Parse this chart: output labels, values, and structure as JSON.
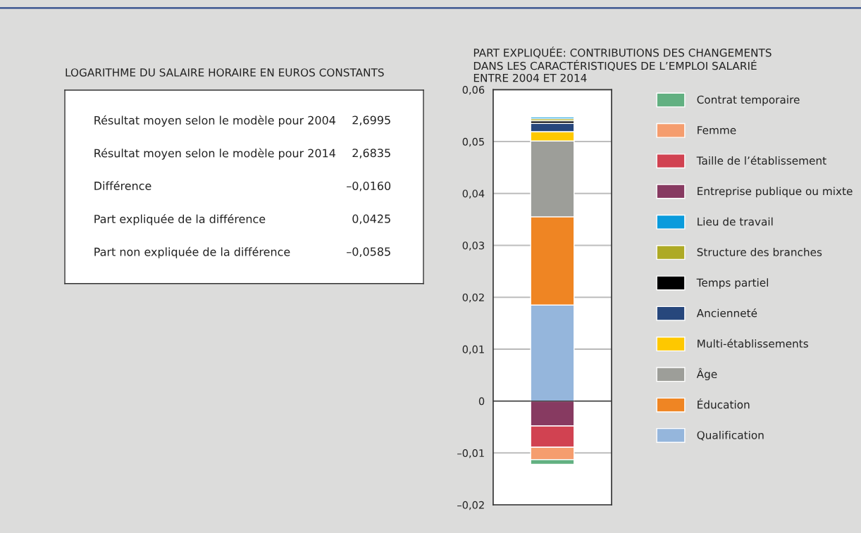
{
  "chart_data": [
    {
      "type": "other",
      "title": "LOGARITHME DU SALAIRE HORAIRE EN EUROS CONSTANTS",
      "annotations": [
        "Résultat moyen selon le modèle pour 2004",
        "2,6995",
        "Résultat moyen selon le modèle pour 2014",
        "2,6835",
        "Différence",
        "–0,0160",
        "Part expliquée de la différence",
        "0,0425",
        "Part non expliquée de la différence",
        "–0,0585"
      ]
    },
    {
      "type": "bar",
      "title": "PART EXPLIQUÉE: CONTRIBUTIONS DES CHANGEMENTS\nDANS LES CARACTÉRISTIQUES DE L’EMPLOI SALARIÉ\nENTRE 2004 ET 2014",
      "categories": [
        null
      ],
      "stacked": true,
      "grid": "y",
      "legend": "right",
      "ylim": [
        -0.02,
        0.06
      ],
      "yticks": [
        {
          "value": -0.02,
          "label": "–0,02"
        },
        {
          "value": -0.01,
          "label": "–0,01"
        },
        0,
        {
          "value": 0.01,
          "label": "0,01"
        },
        {
          "value": 0.02,
          "label": "0,02"
        },
        {
          "value": 0.03,
          "label": "0,03"
        },
        {
          "value": 0.04,
          "label": "0,04"
        },
        {
          "value": 0.05,
          "label": "0,05"
        },
        {
          "value": 0.06,
          "label": "0,06"
        }
      ],
      "series": [
        {
          "name": "Qualification",
          "color": "#95b6dc",
          "values": [
            0.0185
          ]
        },
        {
          "name": "Éducation",
          "color": "#ef8523",
          "values": [
            0.017
          ]
        },
        {
          "name": "Âge",
          "color": "#9d9e99",
          "values": [
            0.0146
          ]
        },
        {
          "name": "Multi-établissements",
          "color": "#fec800",
          "values": [
            0.0018
          ]
        },
        {
          "name": "Ancienneté",
          "color": "#27477c",
          "values": [
            0.0016
          ]
        },
        {
          "name": "Temps partiel",
          "color": "#000000",
          "values": [
            0.0005
          ]
        },
        {
          "name": "Structure des branches",
          "color": "#aeaa25",
          "values": [
            0.0004
          ]
        },
        {
          "name": "Lieu de travail",
          "color": "#0a9bdc",
          "values": [
            0.0003
          ]
        },
        {
          "name": "Entreprise publique ou mixte",
          "color": "#873a61",
          "values": [
            -0.0048
          ]
        },
        {
          "name": "Taille de l’établissement",
          "color": "#d14251",
          "values": [
            -0.0041
          ]
        },
        {
          "name": "Femme",
          "color": "#f59d6e",
          "values": [
            -0.0024
          ]
        },
        {
          "name": "Contrat temporaire",
          "color": "#62b081",
          "values": [
            -0.0009
          ]
        }
      ]
    }
  ]
}
